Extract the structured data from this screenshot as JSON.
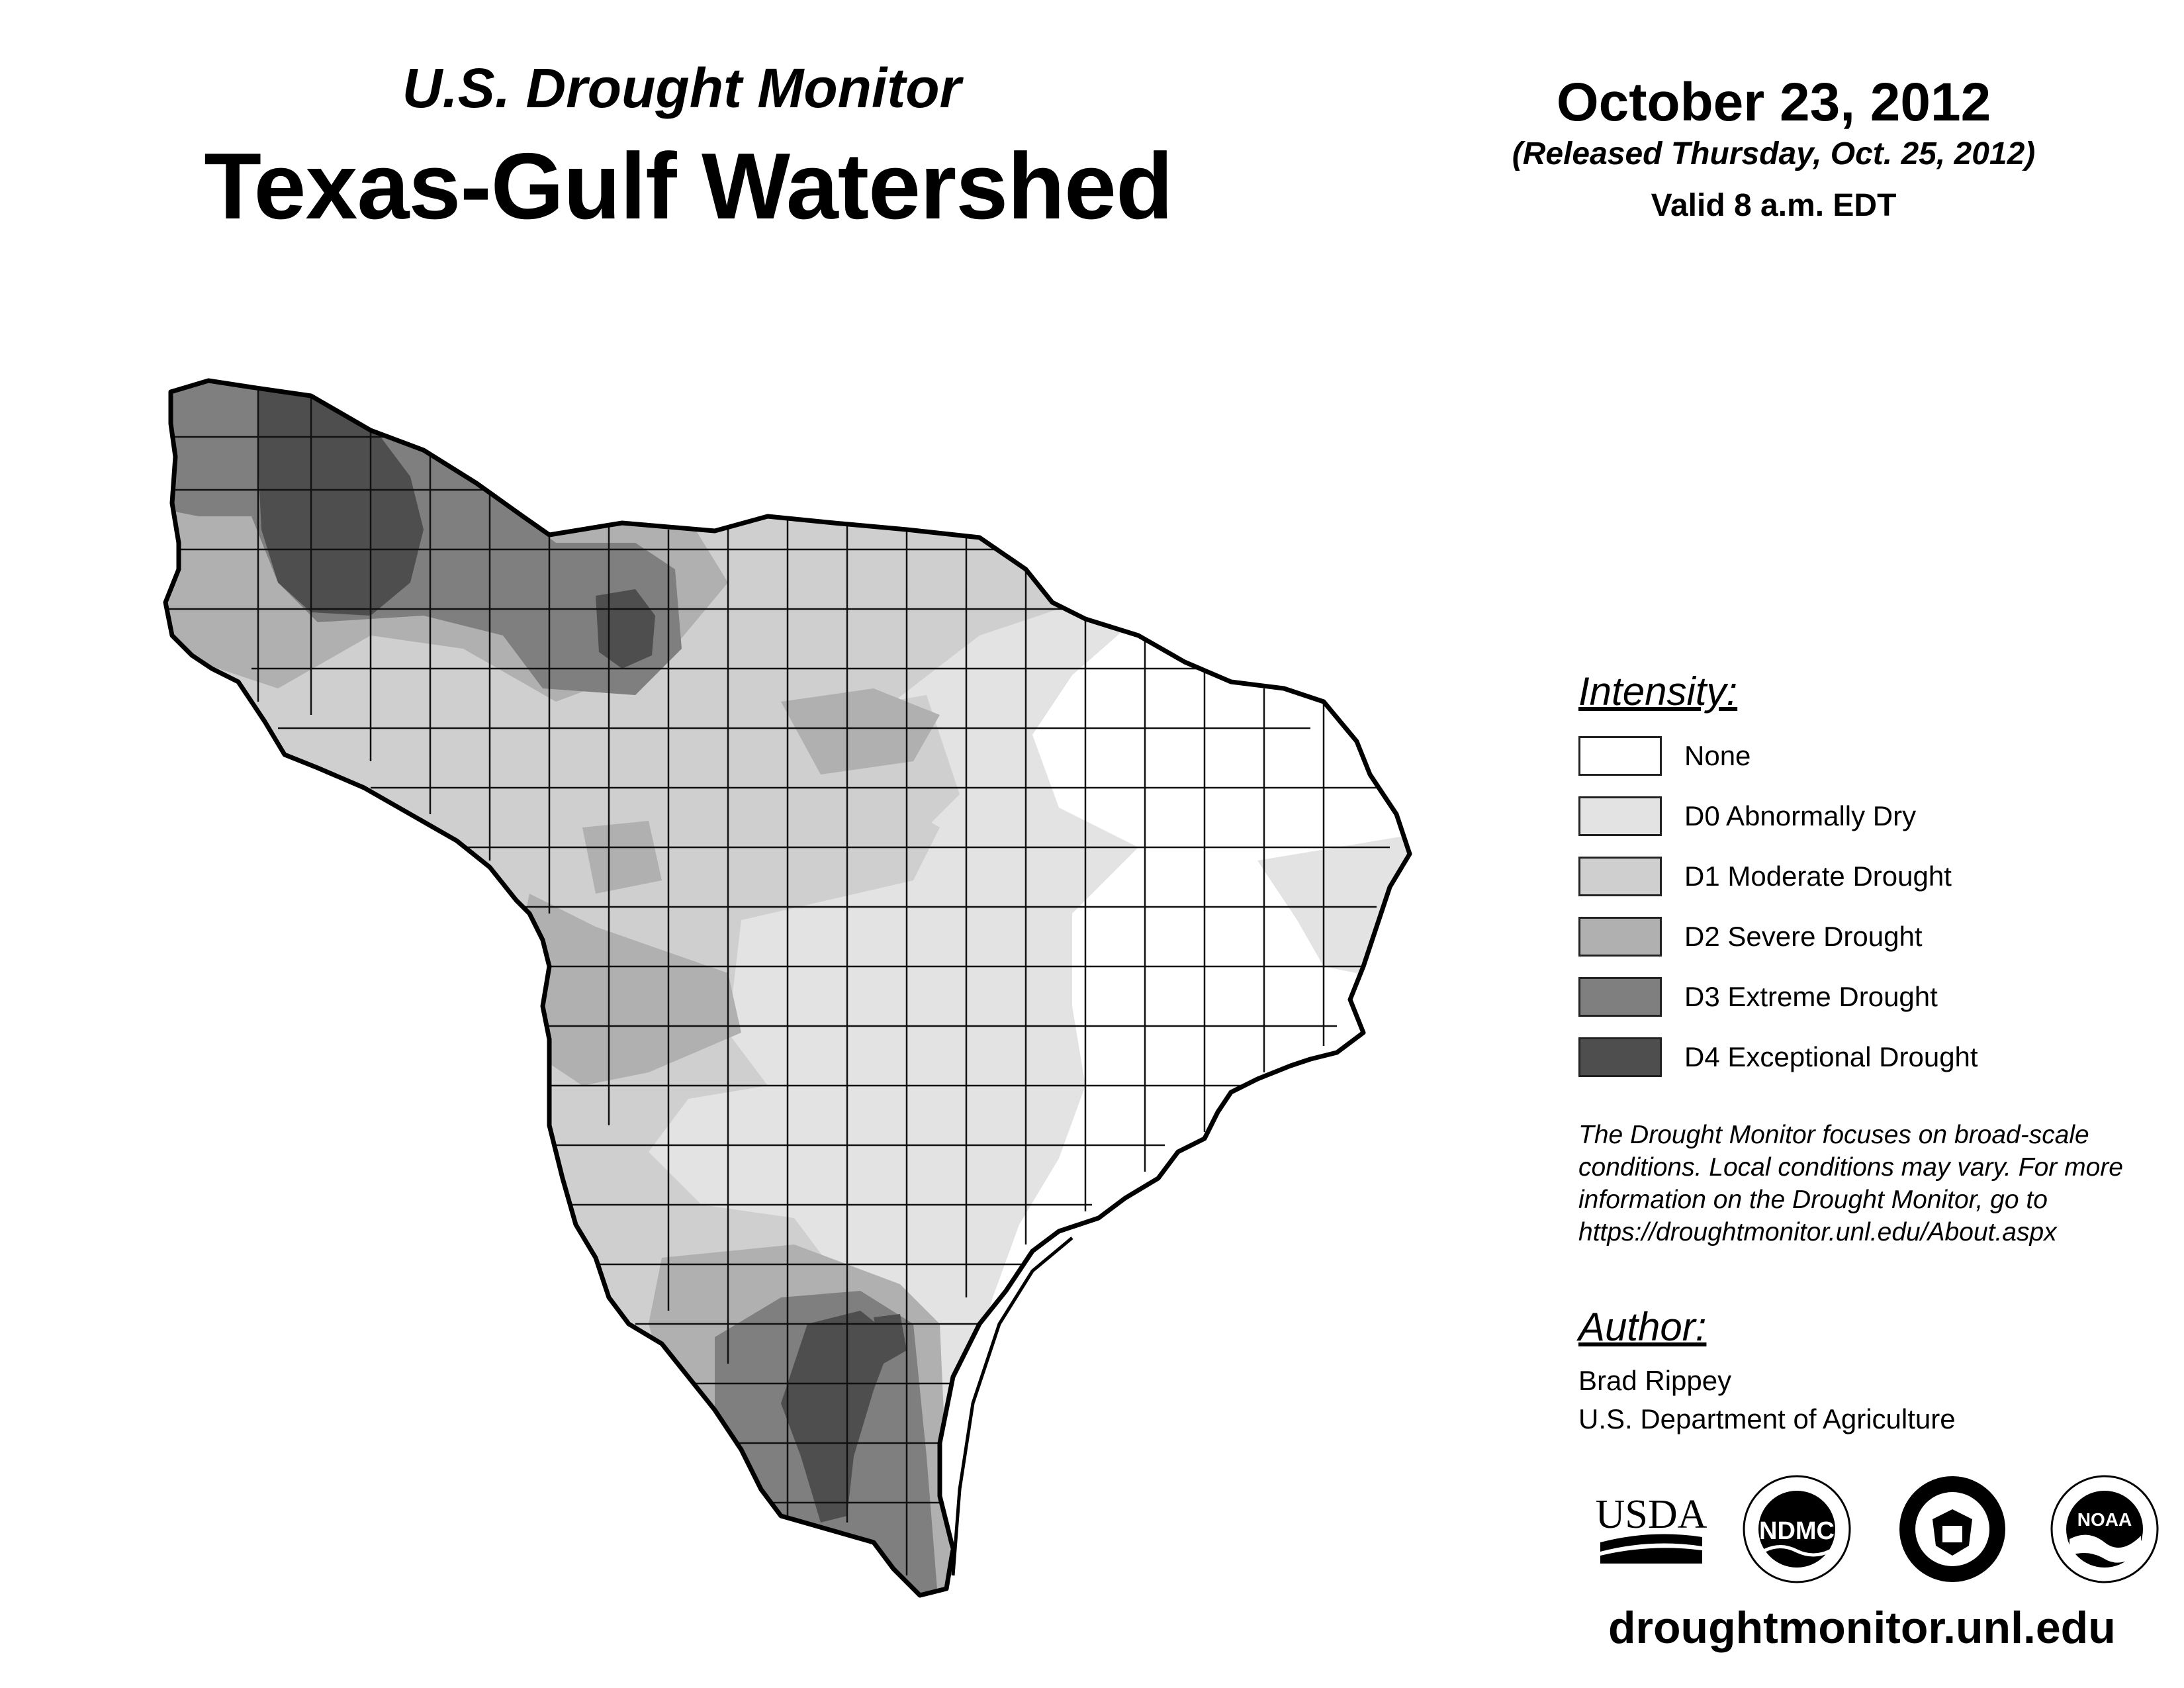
{
  "header": {
    "subtitle": "U.S. Drought Monitor",
    "title": "Texas-Gulf Watershed"
  },
  "date": {
    "main": "October 23, 2012",
    "released": "(Released Thursday, Oct. 25, 2012)",
    "valid": "Valid 8 a.m. EDT"
  },
  "legend": {
    "heading": "Intensity:",
    "items": [
      {
        "label": "None",
        "color": "#ffffff"
      },
      {
        "label": "D0 Abnormally Dry",
        "color": "#e3e3e3"
      },
      {
        "label": "D1 Moderate Drought",
        "color": "#cfcfcf"
      },
      {
        "label": "D2 Severe Drought",
        "color": "#b0b0b0"
      },
      {
        "label": "D3 Extreme Drought",
        "color": "#7f7f7f"
      },
      {
        "label": "D4 Exceptional Drought",
        "color": "#4e4e4e"
      }
    ],
    "note": "The Drought Monitor focuses on broad-scale conditions. Local conditions may vary. For more information on the Drought Monitor, go to https://droughtmonitor.unl.edu/About.aspx"
  },
  "author": {
    "heading": "Author:",
    "name": "Brad Rippey",
    "org": "U.S. Department of Agriculture"
  },
  "logos": {
    "usda": "USDA",
    "ndmc": "NDMC",
    "commerce": "commerce-seal",
    "noaa": "NOAA"
  },
  "footer": {
    "url": "droughtmonitor.unl.edu"
  }
}
